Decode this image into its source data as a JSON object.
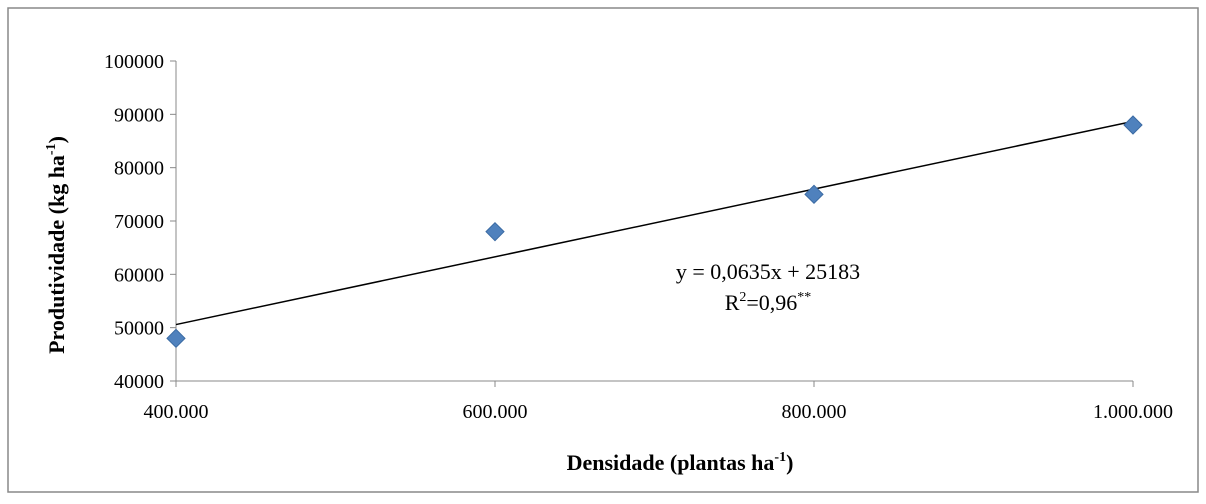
{
  "chart_data": {
    "type": "scatter",
    "title": "",
    "xlabel": "Densidade (plantas ha",
    "xlabel_sup": "-1",
    "xlabel_end": ")",
    "ylabel": "Produtividade (kg ha",
    "ylabel_sup": "-1",
    "ylabel_end": ")",
    "xlim": [
      400000,
      1000000
    ],
    "ylim": [
      40000,
      100000
    ],
    "x_ticks": [
      400000,
      600000,
      800000,
      1000000
    ],
    "x_tick_labels": [
      "400.000",
      "600.000",
      "800.000",
      "1.000.000"
    ],
    "y_ticks": [
      40000,
      50000,
      60000,
      70000,
      80000,
      90000,
      100000
    ],
    "y_tick_labels": [
      "40000",
      "50000",
      "60000",
      "70000",
      "80000",
      "90000",
      "100000"
    ],
    "grid": false,
    "series": [
      {
        "x": [
          400000,
          600000,
          800000,
          1000000
        ],
        "y": [
          48000,
          68000,
          75000,
          88000
        ],
        "marker": "diamond",
        "color": "#4F81BD"
      }
    ],
    "trendline": {
      "slope": 0.0635,
      "intercept": 25183,
      "color": "#000000"
    },
    "annotation": {
      "equation": "y = 0,0635x + 25183",
      "r2_prefix": "R",
      "r2_exp": "2",
      "r2_value": "=0,96",
      "r2_sig": "**"
    }
  }
}
